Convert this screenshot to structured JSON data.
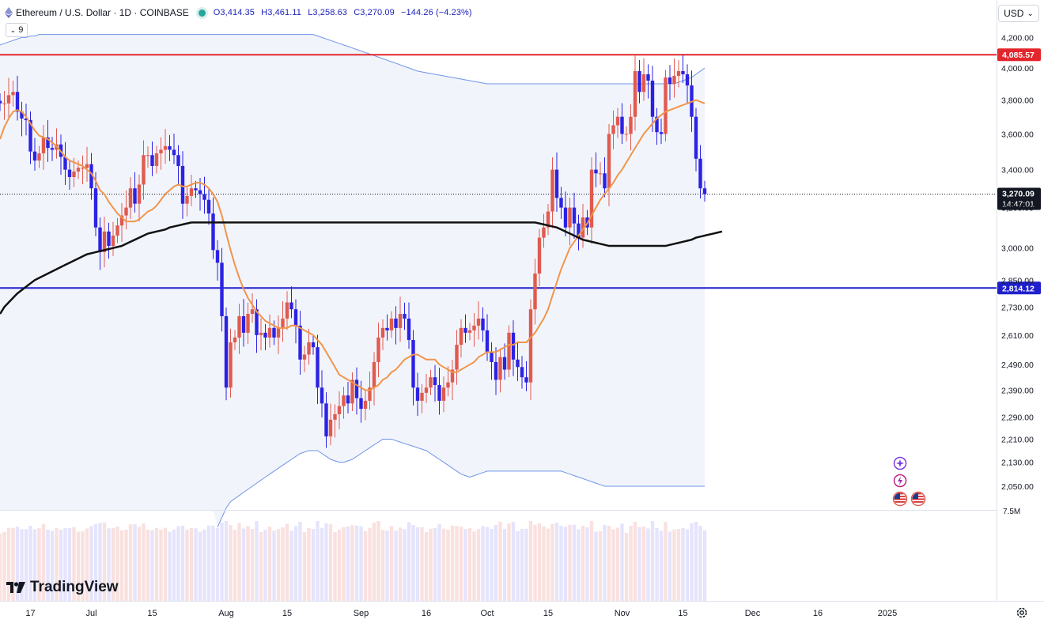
{
  "header": {
    "symbol_title": "Ethereum / U.S. Dollar · 1D · COINBASE",
    "open": "O3,414.35",
    "high": "H3,461.11",
    "low": "L3,258.63",
    "close": "C3,270.09",
    "change": "−144.26 (−4.23%)",
    "indicator_count": "9"
  },
  "currency": {
    "label": "USD"
  },
  "logo": {
    "text": "TradingView"
  },
  "price_labels": {
    "resistance": "4,085.57",
    "support": "2,814.12",
    "last_price": "3,270.09",
    "countdown": "14:47:01"
  },
  "volume_label": "7.5M",
  "colors": {
    "up": "#e05a4e",
    "down": "#2b22e3",
    "resistance": "#e3262c",
    "support": "#1f1fcc",
    "sma_fast": "#f0954a",
    "sma_slow": "#111111",
    "band": "#6f95e8"
  },
  "chart_data": {
    "type": "candlestick",
    "symbol": "Ethereum / U.S. Dollar",
    "interval": "1D",
    "exchange": "COINBASE",
    "y_scale": "log",
    "ylim": [
      1920,
      4320
    ],
    "y_ticks": [
      2050,
      2130,
      2210,
      2290,
      2390,
      2490,
      2610,
      2730,
      2850,
      3000,
      3200,
      3400,
      3600,
      3800,
      4000,
      4200
    ],
    "y_tick_labels": [
      "2,050.00",
      "2,130.00",
      "2,210.00",
      "2,290.00",
      "2,390.00",
      "2,490.00",
      "2,610.00",
      "2,730.00",
      "2,850.00",
      "3,000.00",
      "3,200.00",
      "3,400.00",
      "3,600.00",
      "3,800.00",
      "4,000.00",
      "4,200.00"
    ],
    "x_ticks": [
      {
        "label": "17",
        "idx": 7
      },
      {
        "label": "Jul",
        "idx": 21
      },
      {
        "label": "15",
        "idx": 35
      },
      {
        "label": "Aug",
        "idx": 52
      },
      {
        "label": "15",
        "idx": 66
      },
      {
        "label": "Sep",
        "idx": 83
      },
      {
        "label": "16",
        "idx": 98
      },
      {
        "label": "Oct",
        "idx": 112
      },
      {
        "label": "15",
        "idx": 126
      },
      {
        "label": "Nov",
        "idx": 143
      },
      {
        "label": "15",
        "idx": 157
      },
      {
        "label": "Dec",
        "idx": 173
      },
      {
        "label": "16",
        "idx": 188
      },
      {
        "label": "2025",
        "idx": 204
      }
    ],
    "horizontal_lines": [
      {
        "name": "resistance",
        "value": 4085.57
      },
      {
        "name": "support",
        "value": 2814.12
      }
    ],
    "closes": [
      3780,
      3780,
      3830,
      3850,
      3730,
      3690,
      3680,
      3500,
      3450,
      3490,
      3580,
      3520,
      3510,
      3540,
      3470,
      3400,
      3360,
      3390,
      3410,
      3410,
      3430,
      3300,
      3100,
      2980,
      3080,
      3010,
      3060,
      3110,
      3160,
      3200,
      3300,
      3220,
      3320,
      3480,
      3480,
      3420,
      3490,
      3510,
      3530,
      3510,
      3480,
      3420,
      3220,
      3260,
      3300,
      3290,
      3270,
      3240,
      3170,
      2990,
      2930,
      2690,
      2400,
      2580,
      2600,
      2690,
      2620,
      2700,
      2720,
      2610,
      2620,
      2600,
      2640,
      2600,
      2640,
      2680,
      2750,
      2720,
      2650,
      2510,
      2530,
      2580,
      2560,
      2400,
      2340,
      2220,
      2280,
      2300,
      2330,
      2370,
      2340,
      2430,
      2360,
      2320,
      2350,
      2400,
      2500,
      2600,
      2640,
      2630,
      2680,
      2640,
      2700,
      2680,
      2590,
      2400,
      2350,
      2380,
      2400,
      2440,
      2410,
      2350,
      2400,
      2420,
      2470,
      2570,
      2640,
      2620,
      2630,
      2650,
      2680,
      2630,
      2540,
      2500,
      2430,
      2520,
      2470,
      2620,
      2510,
      2480,
      2440,
      2420,
      2720,
      2880,
      3050,
      3100,
      3180,
      3400,
      3250,
      3200,
      3100,
      3200,
      3120,
      3050,
      3150,
      3100,
      3400,
      3380,
      3380,
      3300,
      3600,
      3650,
      3700,
      3600,
      3600,
      3700,
      3980,
      3850,
      3960,
      3920,
      3700,
      3610,
      3600,
      3940,
      3900,
      3950,
      3980,
      3960,
      3890,
      3700,
      3460,
      3300,
      3270
    ],
    "sma_fast": [
      3570,
      3640,
      3690,
      3730,
      3740,
      3730,
      3700,
      3660,
      3620,
      3590,
      3580,
      3570,
      3550,
      3530,
      3500,
      3470,
      3450,
      3440,
      3430,
      3420,
      3400,
      3380,
      3340,
      3290,
      3270,
      3230,
      3200,
      3170,
      3150,
      3130,
      3130,
      3130,
      3140,
      3160,
      3180,
      3190,
      3210,
      3240,
      3270,
      3290,
      3310,
      3320,
      3310,
      3310,
      3320,
      3330,
      3330,
      3320,
      3300,
      3270,
      3230,
      3160,
      3070,
      2990,
      2920,
      2860,
      2810,
      2770,
      2740,
      2710,
      2690,
      2670,
      2660,
      2650,
      2640,
      2640,
      2640,
      2650,
      2650,
      2640,
      2630,
      2620,
      2610,
      2590,
      2570,
      2540,
      2510,
      2480,
      2450,
      2440,
      2430,
      2420,
      2410,
      2400,
      2390,
      2390,
      2400,
      2410,
      2430,
      2440,
      2460,
      2470,
      2490,
      2510,
      2520,
      2530,
      2530,
      2520,
      2510,
      2510,
      2510,
      2490,
      2480,
      2470,
      2460,
      2460,
      2470,
      2480,
      2490,
      2500,
      2520,
      2530,
      2540,
      2540,
      2540,
      2550,
      2560,
      2570,
      2570,
      2580,
      2580,
      2580,
      2600,
      2620,
      2650,
      2680,
      2720,
      2780,
      2840,
      2900,
      2950,
      3000,
      3030,
      3060,
      3090,
      3120,
      3160,
      3200,
      3240,
      3270,
      3300,
      3330,
      3370,
      3400,
      3440,
      3480,
      3520,
      3560,
      3600,
      3630,
      3660,
      3690,
      3710,
      3730,
      3740,
      3750,
      3760,
      3770,
      3780,
      3790,
      3800,
      3790,
      3780
    ],
    "sma_slow": [
      2700,
      2730,
      2750,
      2770,
      2790,
      2805,
      2820,
      2835,
      2850,
      2860,
      2870,
      2880,
      2890,
      2900,
      2910,
      2920,
      2930,
      2940,
      2950,
      2960,
      2970,
      2975,
      2980,
      2985,
      2990,
      2995,
      3000,
      3005,
      3010,
      3020,
      3030,
      3040,
      3050,
      3060,
      3070,
      3075,
      3080,
      3085,
      3090,
      3100,
      3105,
      3110,
      3115,
      3120,
      3125,
      3125,
      3125,
      3125,
      3125,
      3125,
      3125,
      3125,
      3125,
      3125,
      3125,
      3125,
      3125,
      3125,
      3125,
      3125,
      3125,
      3125,
      3125,
      3125,
      3125,
      3125,
      3125,
      3125,
      3125,
      3125,
      3125,
      3125,
      3125,
      3125,
      3125,
      3125,
      3125,
      3125,
      3125,
      3125,
      3125,
      3125,
      3125,
      3125,
      3125,
      3125,
      3125,
      3125,
      3125,
      3125,
      3125,
      3125,
      3125,
      3125,
      3125,
      3125,
      3125,
      3125,
      3125,
      3125,
      3125,
      3125,
      3125,
      3125,
      3125,
      3125,
      3125,
      3125,
      3125,
      3125,
      3125,
      3125,
      3125,
      3125,
      3125,
      3125,
      3125,
      3125,
      3125,
      3125,
      3125,
      3125,
      3125,
      3125,
      3120,
      3115,
      3110,
      3105,
      3100,
      3090,
      3080,
      3070,
      3060,
      3050,
      3040,
      3035,
      3030,
      3025,
      3020,
      3015,
      3010,
      3010,
      3010,
      3010,
      3010,
      3010,
      3010,
      3010,
      3010,
      3010,
      3010,
      3010,
      3010,
      3010,
      3015,
      3020,
      3025,
      3030,
      3035,
      3040,
      3050,
      3055,
      3060,
      3065,
      3070,
      3075,
      3080
    ],
    "band_upper": [
      4150,
      4160,
      4170,
      4180,
      4190,
      4200,
      4200,
      4210,
      4210,
      4220,
      4220,
      4220,
      4220,
      4220,
      4220,
      4220,
      4220,
      4220,
      4220,
      4220,
      4220,
      4220,
      4220,
      4220,
      4220,
      4220,
      4220,
      4220,
      4220,
      4220,
      4220,
      4220,
      4220,
      4220,
      4220,
      4220,
      4220,
      4220,
      4220,
      4220,
      4220,
      4220,
      4220,
      4220,
      4220,
      4220,
      4220,
      4220,
      4220,
      4220,
      4220,
      4220,
      4220,
      4220,
      4220,
      4220,
      4220,
      4220,
      4220,
      4220,
      4220,
      4220,
      4220,
      4220,
      4220,
      4220,
      4220,
      4220,
      4220,
      4220,
      4220,
      4220,
      4220,
      4210,
      4200,
      4190,
      4180,
      4170,
      4160,
      4150,
      4140,
      4130,
      4120,
      4110,
      4100,
      4090,
      4080,
      4070,
      4060,
      4050,
      4040,
      4030,
      4020,
      4010,
      4000,
      3990,
      3980,
      3975,
      3970,
      3965,
      3960,
      3955,
      3950,
      3945,
      3940,
      3935,
      3930,
      3925,
      3920,
      3915,
      3910,
      3905,
      3900,
      3900,
      3900,
      3900,
      3900,
      3900,
      3900,
      3900,
      3900,
      3900,
      3900,
      3900,
      3900,
      3900,
      3900,
      3900,
      3900,
      3900,
      3900,
      3900,
      3900,
      3900,
      3900,
      3900,
      3900,
      3900,
      3900,
      3900,
      3900,
      3900,
      3900,
      3900,
      3900,
      3900,
      3900,
      3900,
      3900,
      3900,
      3900,
      3900,
      3900,
      3900,
      3900,
      3900,
      3910,
      3920,
      3930,
      3940,
      3960,
      3980,
      4000,
      4010,
      4020,
      4030,
      4040,
      4050,
      4060,
      4065,
      4070,
      4070,
      4070
    ],
    "band_lower": [
      null,
      null,
      null,
      null,
      null,
      null,
      null,
      null,
      null,
      null,
      null,
      null,
      null,
      null,
      null,
      null,
      null,
      null,
      null,
      null,
      null,
      null,
      null,
      null,
      null,
      null,
      null,
      null,
      null,
      null,
      null,
      null,
      null,
      null,
      null,
      null,
      null,
      null,
      null,
      null,
      null,
      null,
      null,
      null,
      null,
      null,
      null,
      null,
      null,
      null,
      1920,
      1950,
      1980,
      2000,
      2010,
      2020,
      2030,
      2040,
      2050,
      2060,
      2070,
      2080,
      2090,
      2100,
      2110,
      2120,
      2130,
      2140,
      2150,
      2160,
      2165,
      2170,
      2170,
      2170,
      2160,
      2150,
      2140,
      2135,
      2130,
      2130,
      2135,
      2140,
      2150,
      2160,
      2170,
      2180,
      2190,
      2200,
      2210,
      2210,
      2210,
      2205,
      2200,
      2195,
      2190,
      2185,
      2180,
      2175,
      2170,
      2160,
      2150,
      2140,
      2130,
      2120,
      2110,
      2100,
      2090,
      2085,
      2080,
      2085,
      2090,
      2095,
      2100,
      2100,
      2100,
      2100,
      2100,
      2100,
      2100,
      2100,
      2100,
      2100,
      2100,
      2100,
      2100,
      2100,
      2100,
      2100,
      2100,
      2100,
      2095,
      2090,
      2085,
      2080,
      2075,
      2070,
      2065,
      2060,
      2055,
      2050,
      2050,
      2050,
      2050,
      2050,
      2050,
      2050,
      2050,
      2050,
      2050,
      2050,
      2050,
      2050,
      2050,
      2050,
      2050,
      2050,
      2050,
      2050,
      2050,
      2050,
      2050,
      2050,
      2050,
      2050,
      2050,
      2050,
      2050,
      2050,
      2050,
      2050,
      2050,
      2050,
      2050,
      2050,
      2050,
      2050,
      2050
    ]
  }
}
